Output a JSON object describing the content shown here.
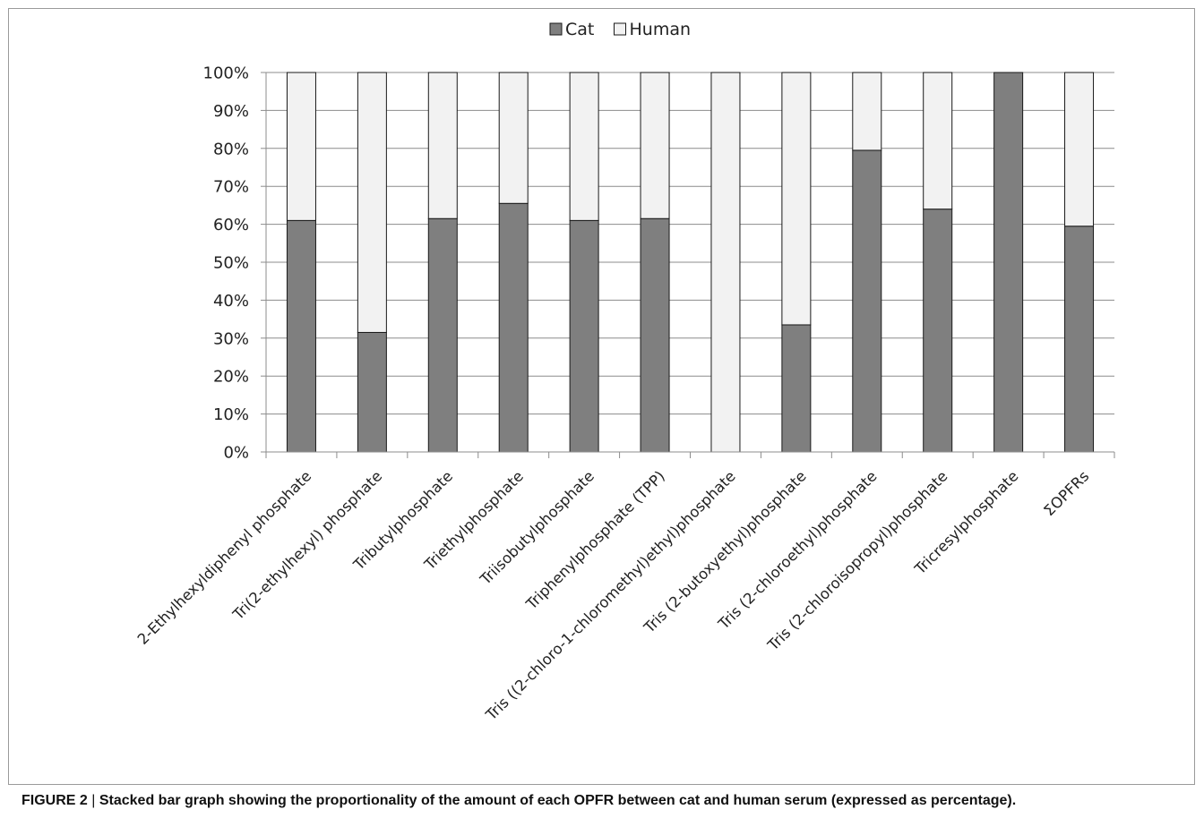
{
  "chart_data": {
    "type": "bar",
    "stacked": true,
    "categories": [
      "2-Ethylhexyldiphenyl phosphate",
      "Tri(2-ethylhexyl) phosphate",
      "Tributylphosphate",
      "Triethylphosphate",
      "Triisobutylphosphate",
      "Triphenylphosphate (TPP)",
      "Tris ((2-chloro-1-chloromethyl)ethyl)phosphate",
      "Tris (2-butoxyethyl)phosphate",
      "Tris (2-chloroethyl)phosphate",
      "Tris (2-chloroisopropyl)phosphate",
      "Tricresylphosphate",
      "ΣOPFRs"
    ],
    "series": [
      {
        "name": "Cat",
        "color": "#7f7f7f",
        "values": [
          61,
          31.5,
          61.5,
          65.5,
          61,
          61.5,
          0,
          33.5,
          79.5,
          64,
          100,
          59.5
        ]
      },
      {
        "name": "Human",
        "color": "#f2f2f2",
        "values": [
          39,
          68.5,
          38.5,
          34.5,
          39,
          38.5,
          100,
          66.5,
          20.5,
          36,
          0,
          40.5
        ]
      }
    ],
    "yticks": [
      "0%",
      "10%",
      "20%",
      "30%",
      "40%",
      "50%",
      "60%",
      "70%",
      "80%",
      "90%",
      "100%"
    ],
    "ylim": [
      0,
      100
    ],
    "grid": true,
    "legend_position": "top-center"
  },
  "caption": {
    "label": "FIGURE 2",
    "separator": "|",
    "text": "Stacked bar graph showing the proportionality of the amount of each OPFR between cat and human serum (expressed as percentage)."
  }
}
